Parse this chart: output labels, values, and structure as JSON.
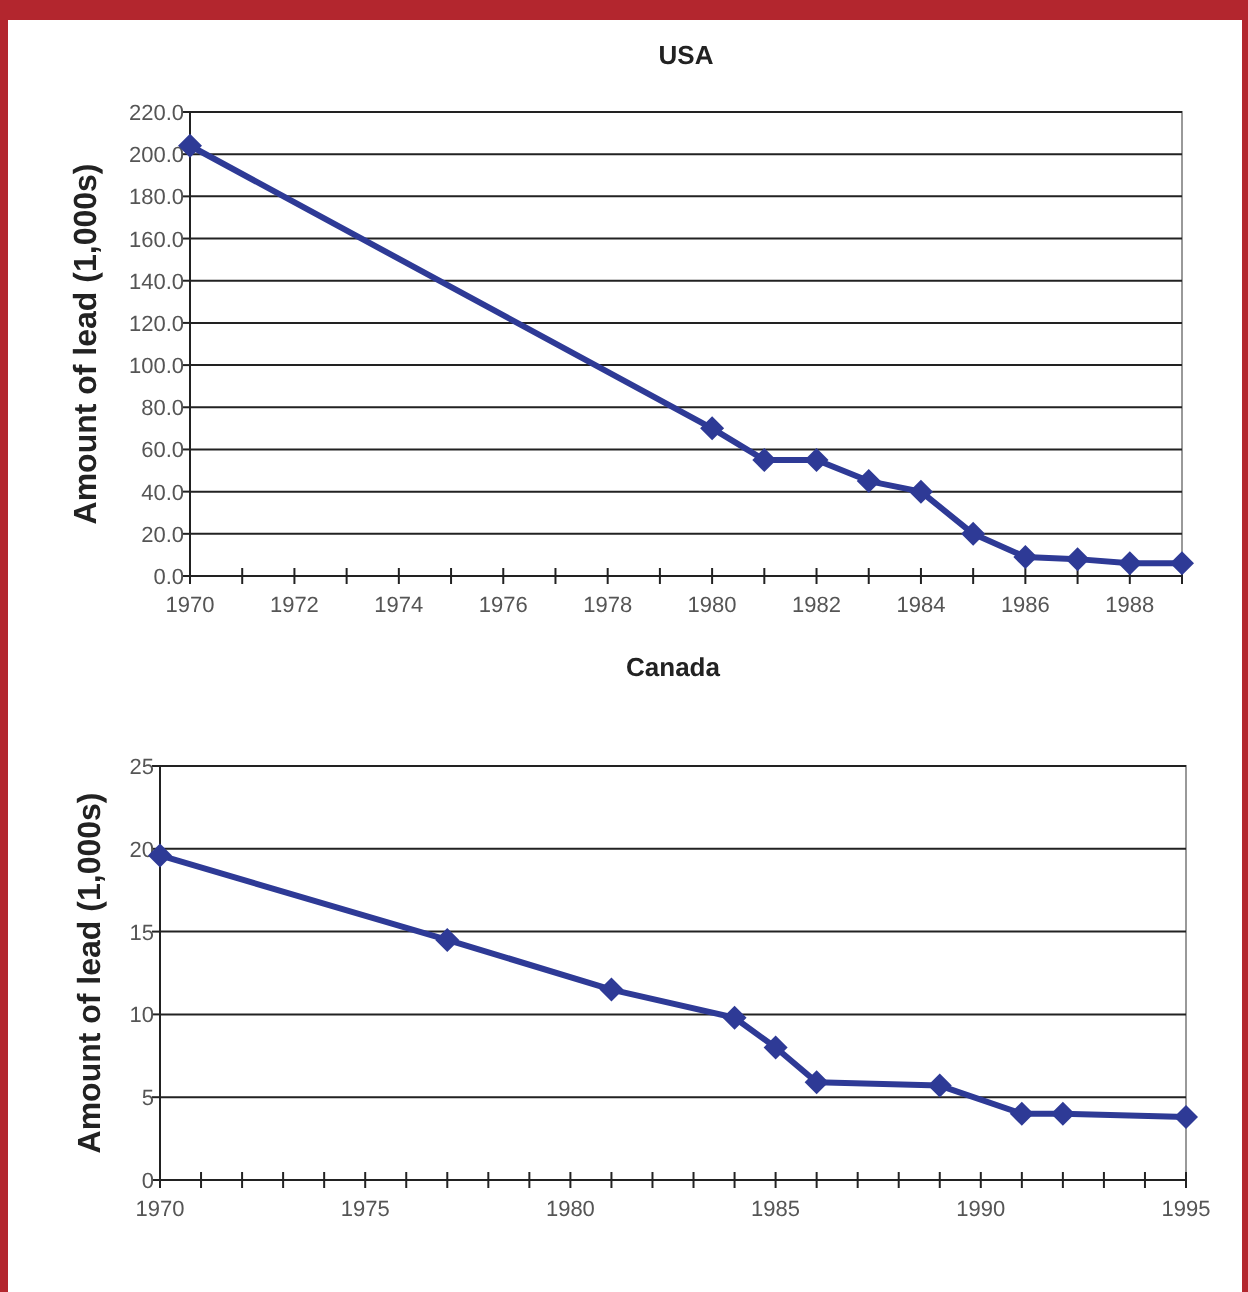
{
  "chart_data": [
    {
      "type": "line",
      "title": "USA",
      "ylabel": "Amount of lead (1,000s)",
      "x": [
        1970,
        1980,
        1981,
        1982,
        1983,
        1984,
        1985,
        1986,
        1987,
        1988,
        1989
      ],
      "series": [
        {
          "color": "#2e3a96",
          "values": [
            204,
            70,
            55,
            55,
            45,
            40,
            20,
            9,
            8,
            6,
            6
          ]
        }
      ],
      "xlim": [
        1970,
        1989
      ],
      "xticks": [
        1970,
        {
          "value": 1971,
          "label": null
        },
        1972,
        {
          "value": 1973,
          "label": null
        },
        1974,
        {
          "value": 1975,
          "label": null
        },
        1976,
        {
          "value": 1977,
          "label": null
        },
        1978,
        {
          "value": 1979,
          "label": null
        },
        1980,
        {
          "value": 1981,
          "label": null
        },
        1982,
        {
          "value": 1983,
          "label": null
        },
        1984,
        {
          "value": 1985,
          "label": null
        },
        1986,
        {
          "value": 1987,
          "label": null
        },
        1988,
        {
          "value": 1989,
          "label": null
        }
      ],
      "ylim": [
        0,
        220
      ],
      "yticks": [
        {
          "value": 0,
          "label": "0.0"
        },
        {
          "value": 20,
          "label": "20.0"
        },
        {
          "value": 40,
          "label": "40.0"
        },
        {
          "value": 60,
          "label": "60.0"
        },
        {
          "value": 80,
          "label": "80.0"
        },
        {
          "value": 100,
          "label": "100.0"
        },
        {
          "value": 120,
          "label": "120.0"
        },
        {
          "value": 140,
          "label": "140.0"
        },
        {
          "value": 160,
          "label": "160.0"
        },
        {
          "value": 180,
          "label": "180.0"
        },
        {
          "value": 200,
          "label": "200.0"
        },
        {
          "value": 220,
          "label": "220.0"
        }
      ],
      "grid": "y",
      "marker": "diamond"
    },
    {
      "type": "line",
      "title": "Canada",
      "ylabel": "Amount of lead (1,000s)",
      "x": [
        1970,
        1977,
        1981,
        1984,
        1985,
        1986,
        1989,
        1991,
        1992,
        1995
      ],
      "series": [
        {
          "color": "#2e3a96",
          "values": [
            19.6,
            14.5,
            11.5,
            9.8,
            8,
            5.9,
            5.7,
            4,
            4,
            3.8
          ]
        }
      ],
      "xlim": [
        1970,
        1995
      ],
      "xticks": [
        1970,
        {
          "value": 1971,
          "label": null
        },
        {
          "value": 1972,
          "label": null
        },
        {
          "value": 1973,
          "label": null
        },
        {
          "value": 1974,
          "label": null
        },
        1975,
        {
          "value": 1976,
          "label": null
        },
        {
          "value": 1977,
          "label": null
        },
        {
          "value": 1978,
          "label": null
        },
        {
          "value": 1979,
          "label": null
        },
        1980,
        {
          "value": 1981,
          "label": null
        },
        {
          "value": 1982,
          "label": null
        },
        {
          "value": 1983,
          "label": null
        },
        {
          "value": 1984,
          "label": null
        },
        1985,
        {
          "value": 1986,
          "label": null
        },
        {
          "value": 1987,
          "label": null
        },
        {
          "value": 1988,
          "label": null
        },
        {
          "value": 1989,
          "label": null
        },
        1990,
        {
          "value": 1991,
          "label": null
        },
        {
          "value": 1992,
          "label": null
        },
        {
          "value": 1993,
          "label": null
        },
        {
          "value": 1994,
          "label": null
        },
        1995
      ],
      "ylim": [
        0,
        25
      ],
      "yticks": [
        0,
        5,
        10,
        15,
        20,
        25
      ],
      "grid": "y",
      "marker": "diamond"
    }
  ]
}
